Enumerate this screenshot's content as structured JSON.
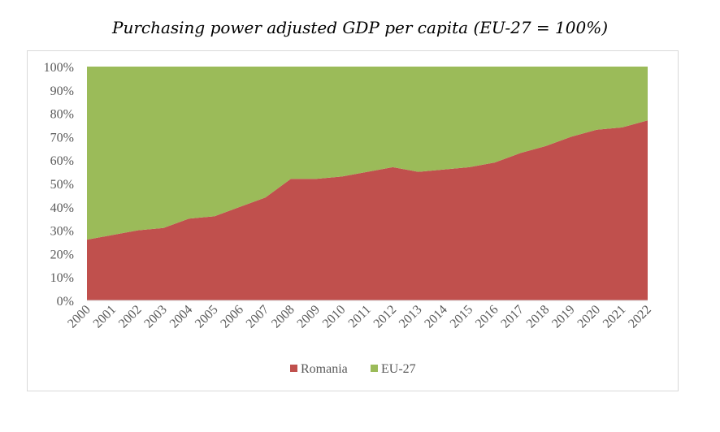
{
  "chart_data": {
    "type": "area",
    "stacked": true,
    "normalized_percent": true,
    "title": "Purchasing power adjusted GDP per capita (EU-27 = 100%)",
    "x": [
      "2000",
      "2001",
      "2002",
      "2003",
      "2004",
      "2005",
      "2006",
      "2007",
      "2008",
      "2009",
      "2010",
      "2011",
      "2012",
      "2013",
      "2014",
      "2015",
      "2016",
      "2017",
      "2018",
      "2019",
      "2020",
      "2021",
      "2022"
    ],
    "yticks": [
      "0%",
      "10%",
      "20%",
      "30%",
      "40%",
      "50%",
      "60%",
      "70%",
      "80%",
      "90%",
      "100%"
    ],
    "ylim": [
      0,
      100
    ],
    "series": [
      {
        "name": "Romania",
        "color": "#c0504d",
        "values": [
          26,
          28,
          30,
          31,
          35,
          36,
          40,
          44,
          52,
          52,
          53,
          55,
          57,
          55,
          56,
          57,
          59,
          63,
          66,
          70,
          73,
          74,
          77
        ]
      },
      {
        "name": "EU-27",
        "color": "#9bbb59",
        "values": [
          74,
          72,
          70,
          69,
          65,
          64,
          60,
          56,
          48,
          48,
          47,
          45,
          43,
          45,
          44,
          43,
          41,
          37,
          34,
          30,
          27,
          26,
          23
        ]
      }
    ],
    "legend_position": "bottom",
    "grid": false
  }
}
